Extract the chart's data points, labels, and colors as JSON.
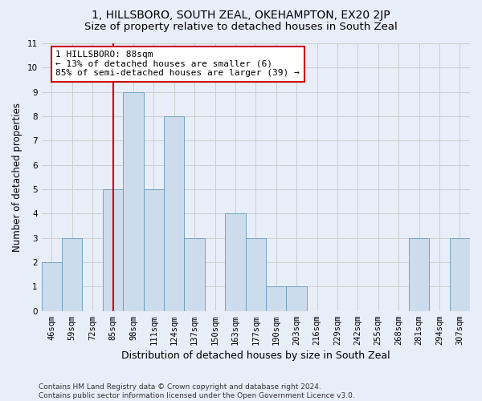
{
  "title": "1, HILLSBORO, SOUTH ZEAL, OKEHAMPTON, EX20 2JP",
  "subtitle": "Size of property relative to detached houses in South Zeal",
  "xlabel": "Distribution of detached houses by size in South Zeal",
  "ylabel": "Number of detached properties",
  "bins": [
    "46sqm",
    "59sqm",
    "72sqm",
    "85sqm",
    "98sqm",
    "111sqm",
    "124sqm",
    "137sqm",
    "150sqm",
    "163sqm",
    "177sqm",
    "190sqm",
    "203sqm",
    "216sqm",
    "229sqm",
    "242sqm",
    "255sqm",
    "268sqm",
    "281sqm",
    "294sqm",
    "307sqm"
  ],
  "values": [
    2,
    3,
    0,
    5,
    9,
    5,
    8,
    3,
    0,
    4,
    3,
    1,
    1,
    0,
    0,
    0,
    0,
    0,
    3,
    0,
    3
  ],
  "bar_color": "#ccdcec",
  "bar_edge_color": "#6699bb",
  "vline_x_index": 3,
  "vline_color": "#cc0000",
  "annotation_text": "1 HILLSBORO: 88sqm\n← 13% of detached houses are smaller (6)\n85% of semi-detached houses are larger (39) →",
  "annotation_box_color": "#ffffff",
  "annotation_box_edge": "#cc0000",
  "ylim": [
    0,
    11
  ],
  "yticks": [
    0,
    1,
    2,
    3,
    4,
    5,
    6,
    7,
    8,
    9,
    10,
    11
  ],
  "grid_color": "#cccccc",
  "background_color": "#e8eef8",
  "footer": "Contains HM Land Registry data © Crown copyright and database right 2024.\nContains public sector information licensed under the Open Government Licence v3.0.",
  "title_fontsize": 10,
  "subtitle_fontsize": 9.5,
  "xlabel_fontsize": 9,
  "ylabel_fontsize": 8.5,
  "tick_fontsize": 7.5,
  "annotation_fontsize": 8,
  "footer_fontsize": 6.5
}
